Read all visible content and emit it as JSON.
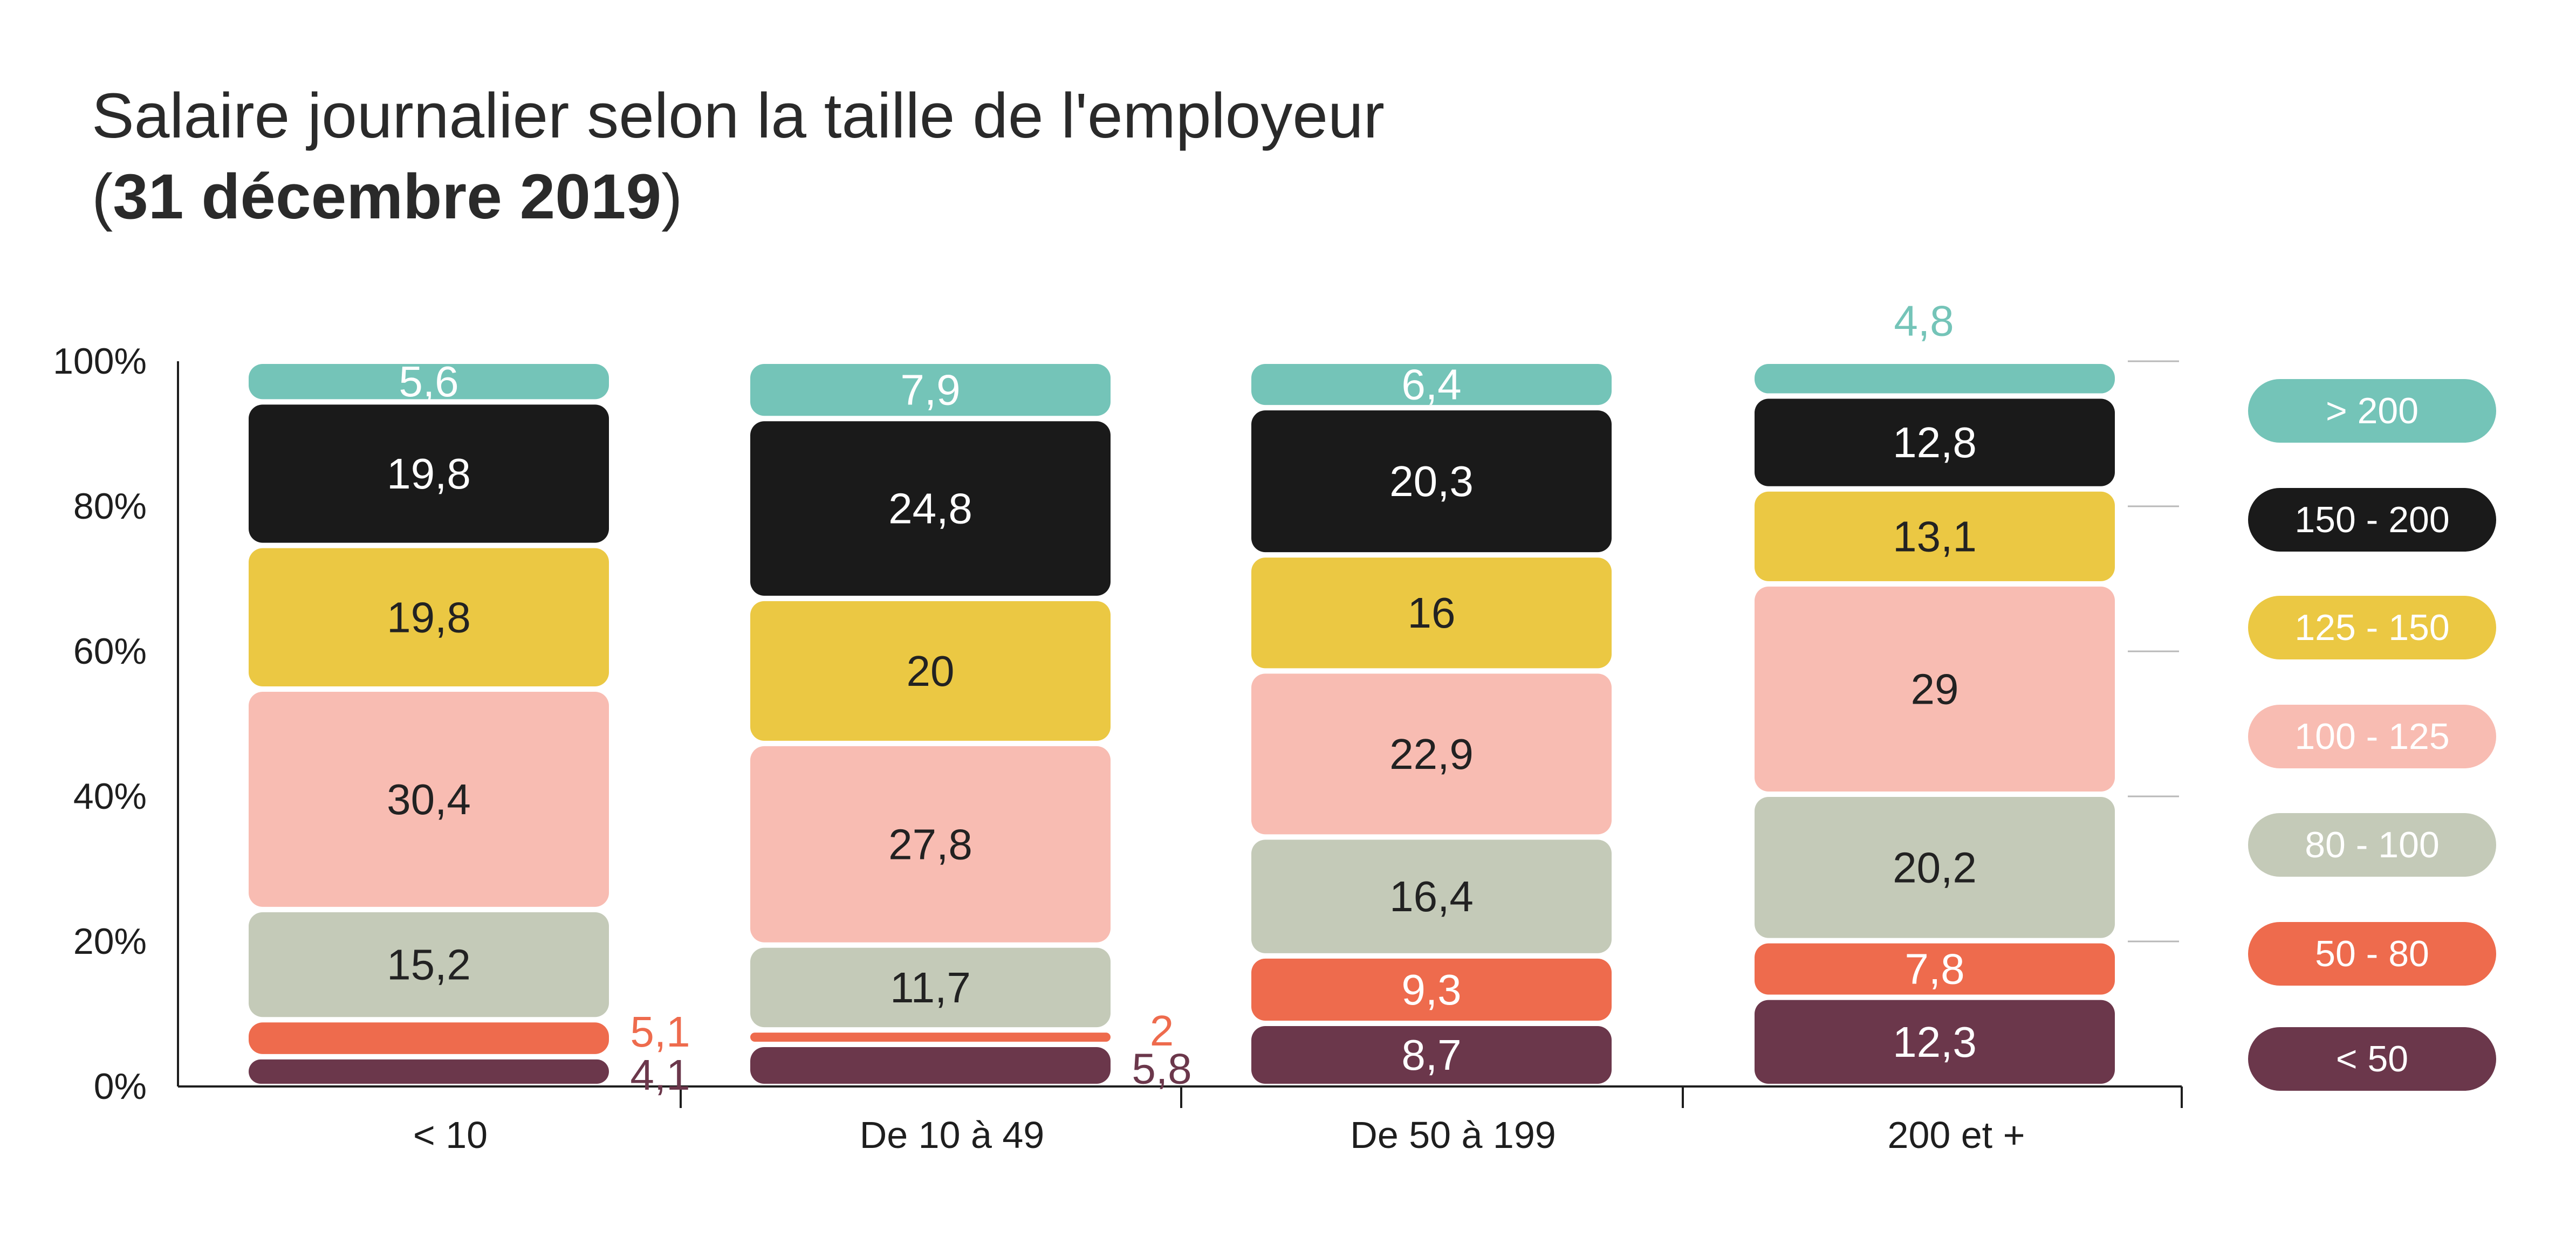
{
  "chart_data": {
    "type": "bar",
    "stacked": true,
    "title_line1": "Salaire journalier selon la taille de l'employeur",
    "title_line2_open": "(",
    "title_line2_bold": "31 décembre 2019",
    "title_line2_close": ")",
    "categories": [
      "< 10",
      "De 10 à 49",
      "De 50 à 199",
      "200 et +"
    ],
    "ylim": [
      0,
      100
    ],
    "yticks": [
      "0%",
      "20%",
      "40%",
      "60%",
      "80%",
      "100%"
    ],
    "legend_position": "right",
    "series": [
      {
        "name": "< 50",
        "color": "#6b374b",
        "label_color": "#ffffff",
        "values": [
          4.1,
          5.8,
          8.7,
          12.3
        ],
        "labels": [
          "4,1",
          "5,8",
          "8,7",
          "12,3"
        ]
      },
      {
        "name": "50 - 80",
        "color": "#ee6b4d",
        "label_color": "#ffffff",
        "values": [
          5.1,
          2,
          9.3,
          7.8
        ],
        "labels": [
          "5,1",
          "2",
          "9,3",
          "7,8"
        ]
      },
      {
        "name": "80 - 100",
        "color": "#c4cab8",
        "label_color": "#222222",
        "values": [
          15.2,
          11.7,
          16.4,
          20.2
        ],
        "labels": [
          "15,2",
          "11,7",
          "16,4",
          "20,2"
        ]
      },
      {
        "name": "100 - 125",
        "color": "#f8bcb2",
        "label_color": "#222222",
        "values": [
          30.4,
          27.8,
          22.9,
          29
        ],
        "labels": [
          "30,4",
          "27,8",
          "22,9",
          "29"
        ]
      },
      {
        "name": "125 - 150",
        "color": "#ebc843",
        "label_color": "#222222",
        "values": [
          19.8,
          20,
          16,
          13.1
        ],
        "labels": [
          "19,8",
          "20",
          "16",
          "13,1"
        ]
      },
      {
        "name": "150 - 200",
        "color": "#1a1a1a",
        "label_color": "#ffffff",
        "values": [
          19.8,
          24.8,
          20.3,
          12.8
        ],
        "labels": [
          "19,8",
          "24,8",
          "20,3",
          "12,8"
        ]
      },
      {
        "name": "> 200",
        "color": "#74c4b8",
        "label_color": "#ffffff",
        "values": [
          5.6,
          7.9,
          6.4,
          4.8
        ],
        "labels": [
          "5,6",
          "7,9",
          "6,4",
          "4,8"
        ]
      }
    ]
  }
}
